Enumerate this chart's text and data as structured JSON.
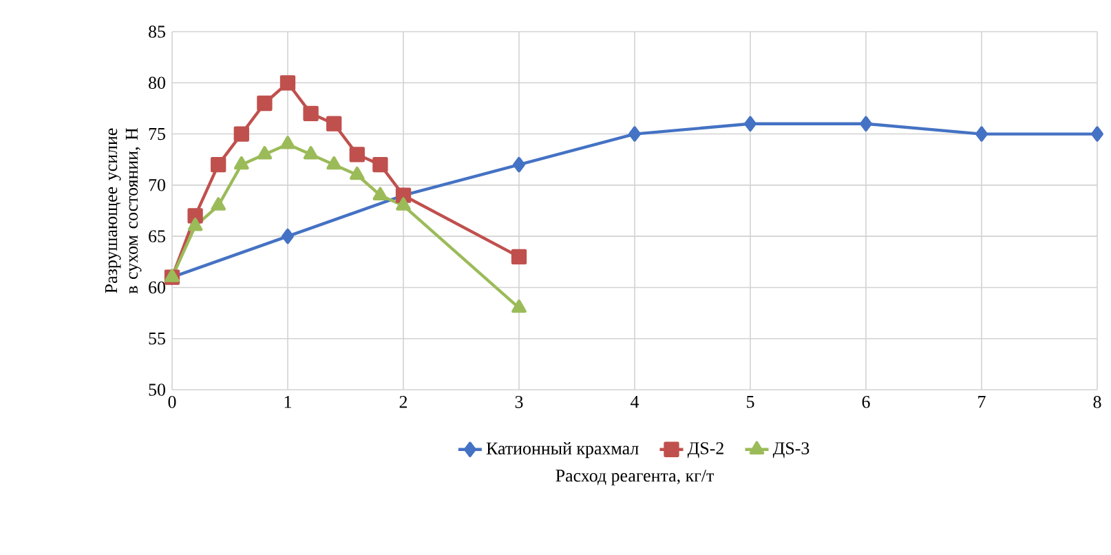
{
  "chart_data": {
    "type": "line",
    "xlabel": "Расход реагента, кг/т",
    "ylabel": "Разрушающее усилие в сухом состоянии, Н",
    "xlim": [
      0,
      8
    ],
    "xticks": [
      0,
      1,
      2,
      3,
      4,
      5,
      6,
      7,
      8
    ],
    "ylim": [
      50,
      85
    ],
    "yticks": [
      50,
      55,
      60,
      65,
      70,
      75,
      80,
      85
    ],
    "grid": true,
    "legend": "bottom",
    "series": [
      {
        "name": "Катионный крахмал",
        "color": "#4472c4",
        "marker": "diamond",
        "x": [
          0,
          1,
          2,
          3,
          4,
          5,
          6,
          7,
          8
        ],
        "values": [
          61,
          65,
          69,
          72,
          75,
          76,
          76,
          75,
          75
        ]
      },
      {
        "name": "ДS-2",
        "color": "#c0504d",
        "marker": "square",
        "x": [
          0,
          0.2,
          0.4,
          0.6,
          0.8,
          1,
          1.2,
          1.4,
          1.6,
          1.8,
          2,
          3
        ],
        "values": [
          61,
          67,
          72,
          75,
          78,
          80,
          77,
          76,
          73,
          72,
          69,
          63
        ]
      },
      {
        "name": "ДS-3",
        "color": "#9bbb59",
        "marker": "triangle",
        "x": [
          0,
          0.2,
          0.4,
          0.6,
          0.8,
          1,
          1.2,
          1.4,
          1.6,
          1.8,
          2,
          3
        ],
        "values": [
          61,
          66,
          68,
          72,
          73,
          74,
          73,
          72,
          71,
          69,
          68,
          58
        ]
      }
    ]
  }
}
